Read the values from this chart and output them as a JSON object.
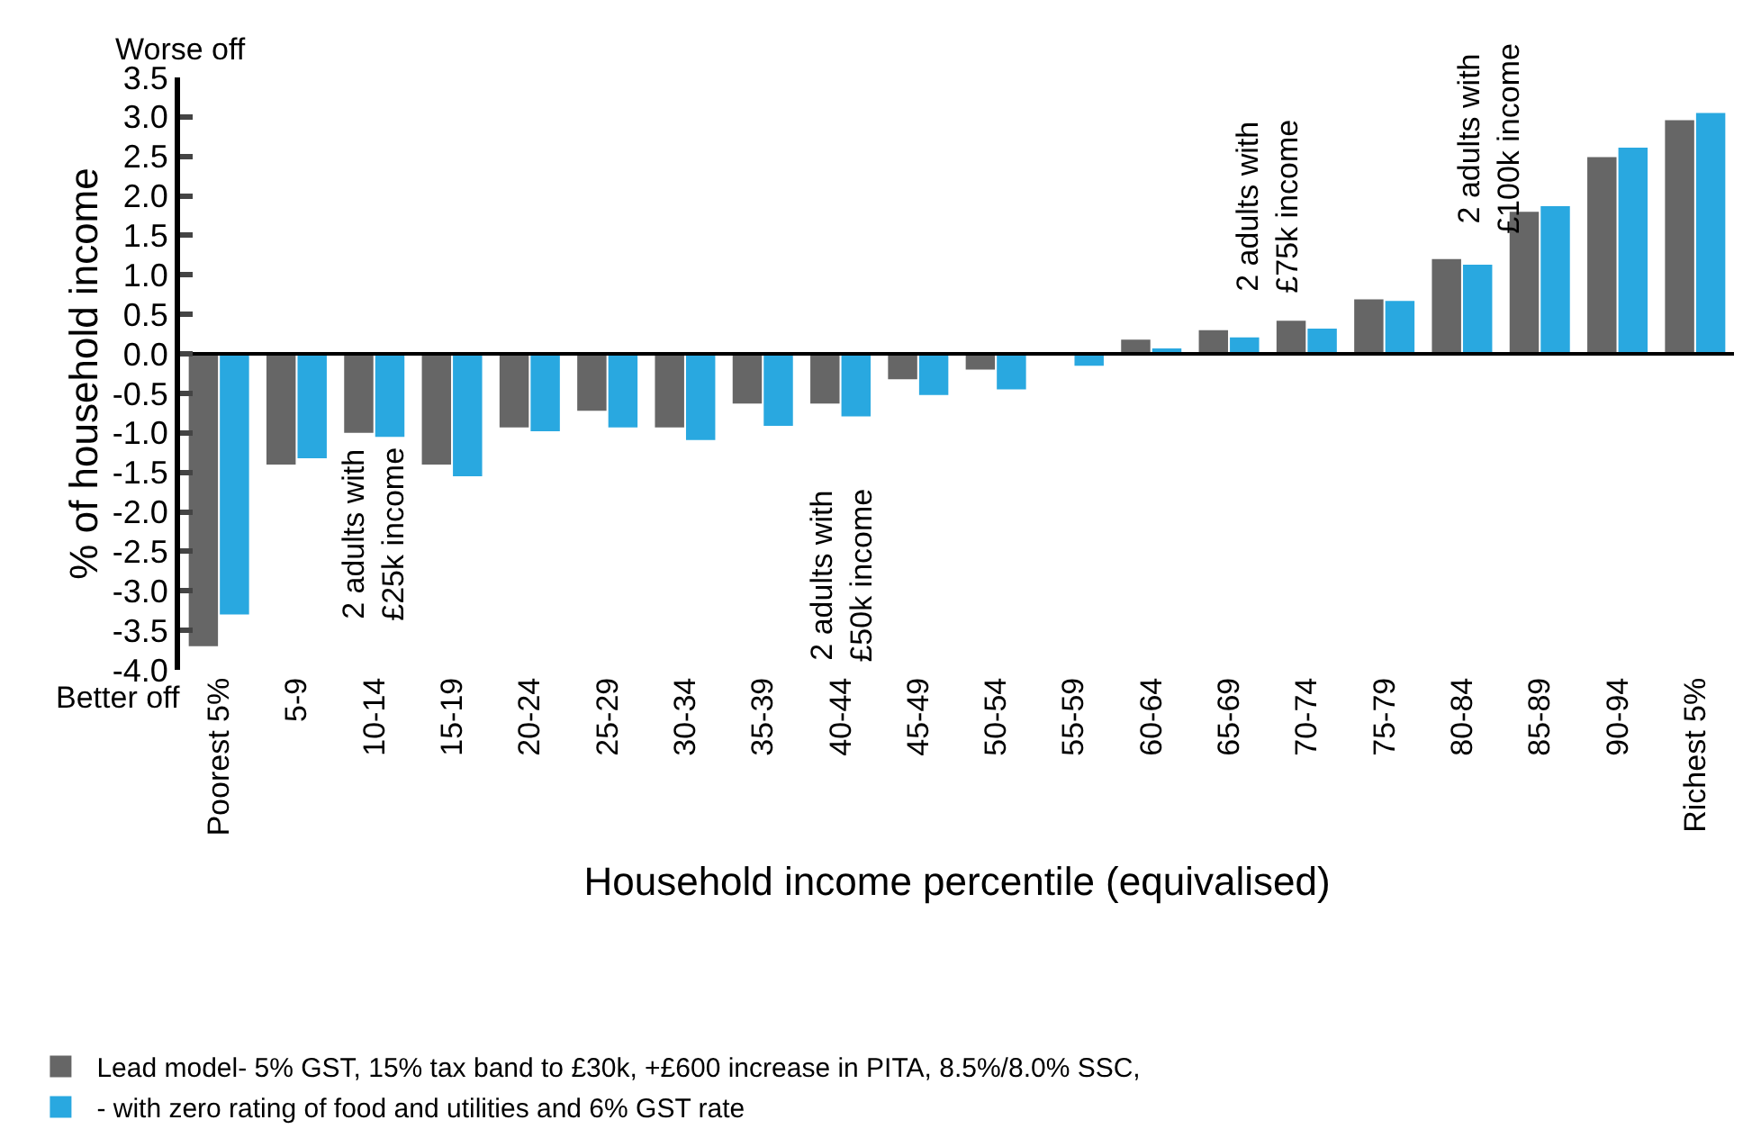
{
  "chart_data": {
    "type": "bar",
    "xlabel": "Household income percentile (equivalised)",
    "ylabel": "% of household income",
    "categories": [
      "Poorest 5%",
      "5-9",
      "10-14",
      "15-19",
      "20-24",
      "25-29",
      "30-34",
      "35-39",
      "40-44",
      "45-49",
      "50-54",
      "55-59",
      "60-64",
      "65-69",
      "70-74",
      "75-79",
      "80-84",
      "85-89",
      "90-94",
      "Richest 5%"
    ],
    "series": [
      {
        "name": "Lead model- 5% GST, 15% tax band to £30k, +£600 increase in PITA, 8.5%/8.0% SSC,",
        "color": "#666666",
        "values": [
          -3.7,
          -1.4,
          -1.0,
          -1.4,
          -0.93,
          -0.72,
          -0.93,
          -0.63,
          -0.63,
          -0.32,
          -0.2,
          0,
          0.18,
          0.3,
          0.42,
          0.69,
          1.2,
          1.8,
          2.49,
          2.96
        ]
      },
      {
        "name": "- with zero rating of food and utilities and 6% GST rate",
        "color": "#29a8e0",
        "values": [
          -3.3,
          -1.32,
          -1.05,
          -1.55,
          -0.98,
          -0.93,
          -1.09,
          -0.91,
          -0.79,
          -0.52,
          -0.45,
          -0.15,
          0.07,
          0.21,
          0.32,
          0.67,
          1.13,
          1.87,
          2.61,
          3.05
        ]
      }
    ],
    "ylim": [
      -4.0,
      3.5
    ],
    "yticks": [
      {
        "value": 3.5,
        "label": "3.5"
      },
      {
        "value": 3.0,
        "label": "3.0"
      },
      {
        "value": 2.5,
        "label": "2.5"
      },
      {
        "value": 2.0,
        "label": "2.0"
      },
      {
        "value": 1.5,
        "label": "1.5"
      },
      {
        "value": 1.0,
        "label": "1.0"
      },
      {
        "value": 0.5,
        "label": "0.5"
      },
      {
        "value": 0.0,
        "label": "0.0"
      },
      {
        "value": -0.5,
        "label": "-0.5"
      },
      {
        "value": -1.0,
        "label": "-1.0"
      },
      {
        "value": -1.5,
        "label": "-1.5"
      },
      {
        "value": -2.0,
        "label": "-2.0"
      },
      {
        "value": -2.5,
        "label": "-2.5"
      },
      {
        "value": -3.0,
        "label": "-3.0"
      },
      {
        "value": -3.5,
        "label": "-3.5"
      },
      {
        "value": -4.0,
        "label": "-4.0"
      }
    ],
    "annotations": [
      "Worse off",
      "Better off",
      "2 adults with\n£25k income",
      "2 adults with\n£50k income",
      "2 adults with\n£75k income",
      "2 adults with\n£100k income"
    ],
    "legend": "bottom left"
  }
}
